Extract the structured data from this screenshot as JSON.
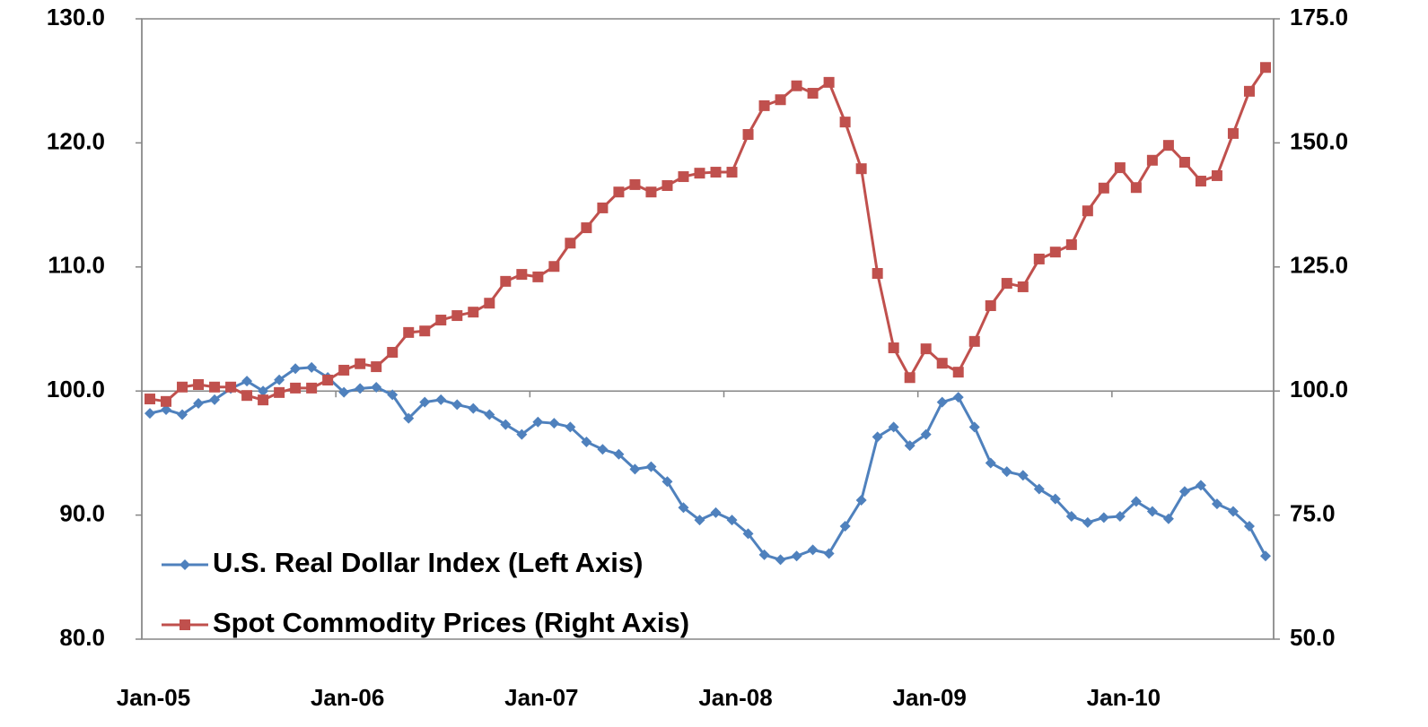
{
  "chart_data": {
    "type": "line",
    "categories": [
      "Jan-05",
      null,
      null,
      null,
      null,
      null,
      null,
      null,
      null,
      null,
      null,
      null,
      "Jan-06",
      null,
      null,
      null,
      null,
      null,
      null,
      null,
      null,
      null,
      null,
      null,
      "Jan-07",
      null,
      null,
      null,
      null,
      null,
      null,
      null,
      null,
      null,
      null,
      null,
      "Jan-08",
      null,
      null,
      null,
      null,
      null,
      null,
      null,
      null,
      null,
      null,
      null,
      "Jan-09",
      null,
      null,
      null,
      null,
      null,
      null,
      null,
      null,
      null,
      null,
      null,
      "Jan-10",
      null,
      null,
      null,
      null,
      null,
      null,
      null,
      null,
      null
    ],
    "series": [
      {
        "name": "U.S. Real Dollar Index (Left Axis)",
        "color": "#4f81bd",
        "marker": "diamond",
        "values": [
          98.2,
          98.5,
          98.1,
          99.0,
          99.3,
          100.2,
          100.8,
          100.0,
          100.9,
          101.8,
          101.9,
          101.1,
          99.9,
          100.2,
          100.3,
          99.7,
          97.8,
          99.1,
          99.3,
          98.9,
          98.6,
          98.1,
          97.3,
          96.5,
          97.5,
          97.4,
          97.1,
          95.9,
          95.3,
          94.9,
          93.7,
          93.9,
          92.7,
          90.6,
          89.6,
          90.2,
          89.6,
          88.5,
          86.8,
          86.4,
          86.7,
          87.2,
          86.9,
          89.1,
          91.2,
          96.3,
          97.1,
          95.6,
          96.5,
          99.1,
          99.5,
          97.1,
          94.2,
          93.5,
          93.2,
          92.1,
          91.3,
          89.9,
          89.4,
          89.8,
          89.9,
          91.1,
          90.3,
          89.7,
          91.9,
          92.4,
          90.9,
          90.3,
          89.1,
          86.7
        ]
      },
      {
        "name": "Spot Commodity Prices (Right Axis)",
        "color": "#c0504d",
        "marker": "square",
        "axis": "y2",
        "values": [
          98.4,
          97.9,
          100.8,
          101.3,
          100.8,
          100.8,
          99.1,
          98.2,
          99.7,
          100.6,
          100.6,
          102.2,
          104.2,
          105.5,
          104.9,
          107.8,
          111.8,
          112.1,
          114.3,
          115.2,
          115.9,
          117.7,
          122.1,
          123.5,
          123.0,
          125.1,
          129.8,
          132.9,
          136.9,
          140.1,
          141.6,
          140.1,
          141.4,
          143.2,
          143.9,
          144.1,
          144.1,
          151.7,
          157.5,
          158.7,
          161.5,
          160.0,
          162.2,
          154.2,
          144.8,
          123.7,
          108.7,
          102.7,
          108.5,
          105.6,
          103.8,
          110.0,
          117.2,
          121.7,
          121.0,
          126.6,
          128.0,
          129.5,
          136.3,
          140.9,
          145.0,
          141.0,
          146.5,
          149.5,
          146.1,
          142.3,
          143.4,
          151.9,
          160.4,
          165.2
        ]
      }
    ],
    "ylim": [
      80,
      130
    ],
    "yticks": [
      {
        "value": 80,
        "label": "80.0"
      },
      {
        "value": 90,
        "label": "90.0"
      },
      {
        "value": 100,
        "label": "100.0"
      },
      {
        "value": 110,
        "label": "110.0"
      },
      {
        "value": 120,
        "label": "120.0"
      },
      {
        "value": 130,
        "label": "130.0"
      }
    ],
    "y2lim": [
      50,
      175
    ],
    "y2ticks": [
      {
        "value": 50,
        "label": "50.0"
      },
      {
        "value": 75,
        "label": "75.0"
      },
      {
        "value": 100,
        "label": "100.0"
      },
      {
        "value": 125,
        "label": "125.0"
      },
      {
        "value": 150,
        "label": "150.0"
      },
      {
        "value": 175,
        "label": "175.0"
      }
    ],
    "xaxis_crossing": 100,
    "legend": "lower left"
  }
}
